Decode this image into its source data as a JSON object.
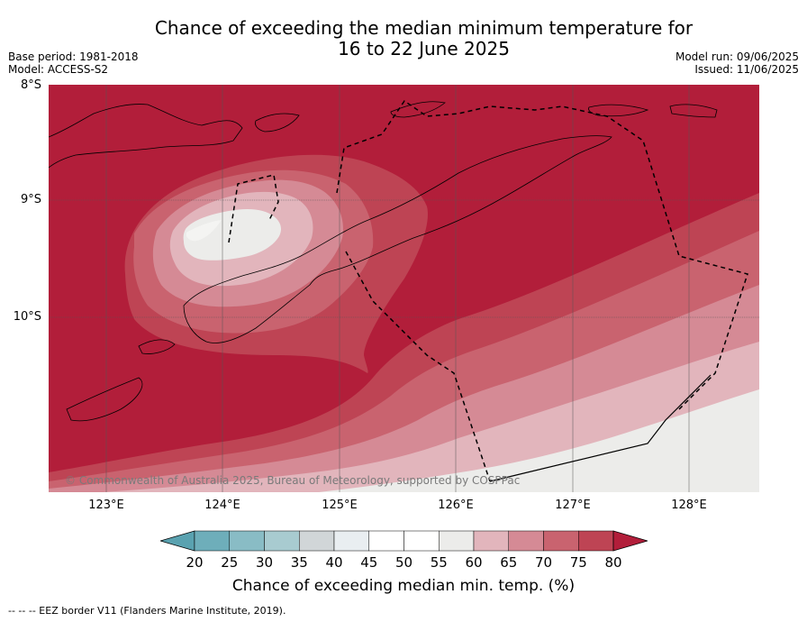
{
  "title": {
    "line1": "Chance of exceeding the median minimum temperature for",
    "line2": "16 to 22 June 2025"
  },
  "meta": {
    "base_period": "Base period: 1981-2018",
    "model": "Model: ACCESS-S2",
    "model_run": "Model run: 09/06/2025",
    "issued": "Issued: 11/06/2025"
  },
  "map": {
    "lat_labels": [
      "8°S",
      "9°S",
      "10°S"
    ],
    "lon_labels": [
      "123°E",
      "124°E",
      "125°E",
      "126°E",
      "127°E",
      "128°E"
    ],
    "copyright": "© Commonwealth of Australia 2025, Bureau of Meteorology, supported by COSPPac",
    "colors": {
      "c55_60": "#ececea",
      "c60_65": "#e2b5bc",
      "c65_70": "#d58a95",
      "c70_75": "#c9636f",
      "c75_80": "#be4454",
      "c80_plus": "#b21e3a"
    }
  },
  "colorbar": {
    "ticks": [
      "20",
      "25",
      "30",
      "35",
      "40",
      "45",
      "50",
      "55",
      "60",
      "65",
      "70",
      "75",
      "80"
    ],
    "colors": [
      "#5aa2b0",
      "#6eaeba",
      "#89bcc5",
      "#a8cbd0",
      "#d1d6d8",
      "#e9eef1",
      "#ffffff",
      "#ffffff",
      "#ececea",
      "#e2b5bc",
      "#d58a95",
      "#c9636f",
      "#be4454",
      "#b21e3a"
    ],
    "label": "Chance of exceeding median min. temp. (%)"
  },
  "footer": "--  --  -- EEZ border V11 (Flanders Marine Institute, 2019)."
}
